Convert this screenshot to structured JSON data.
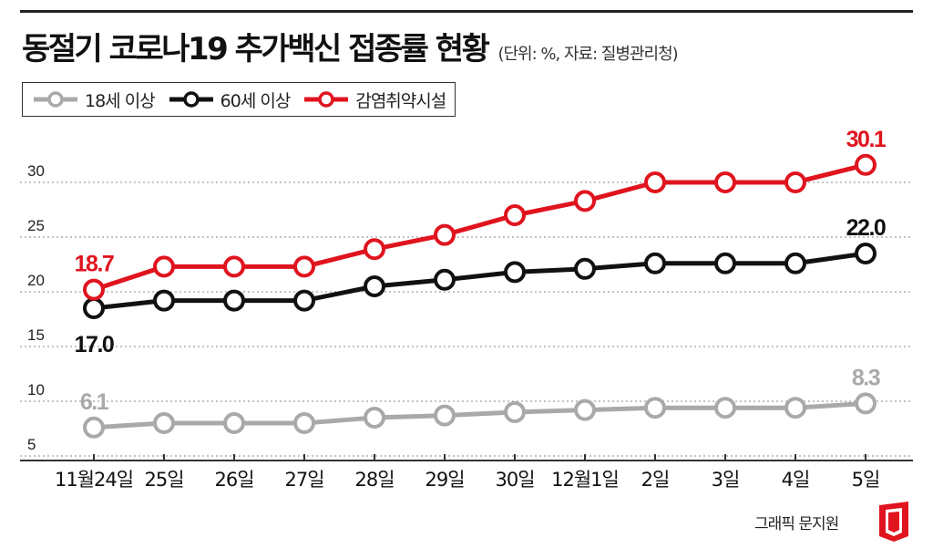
{
  "title": "동절기 코로나19 추가백신 접종률 현황",
  "subtitle": "(단위: %, 자료: 질병관리청)",
  "credit": "그래픽 문지원",
  "colors": {
    "series_18": "#a9a9a9",
    "series_60": "#111111",
    "series_vuln": "#e0141e"
  },
  "chart_data": {
    "type": "line",
    "title": "동절기 코로나19 추가백신 접종률 현황",
    "xlabel": "",
    "ylabel": "",
    "ylim": [
      3,
      33
    ],
    "yticks": [
      5,
      10,
      15,
      20,
      25,
      30
    ],
    "grid": true,
    "legend_position": "top-left",
    "categories": [
      "11월24일",
      "25일",
      "26일",
      "27일",
      "28일",
      "29일",
      "30일",
      "12월1일",
      "2일",
      "3일",
      "4일",
      "5일"
    ],
    "series": [
      {
        "name": "18세 이상",
        "color": "#a9a9a9",
        "values": [
          6.1,
          6.5,
          6.5,
          6.5,
          7.0,
          7.2,
          7.5,
          7.7,
          7.9,
          7.9,
          7.9,
          8.3
        ],
        "labels": [
          {
            "index": 0,
            "text": "6.1",
            "position": "above"
          },
          {
            "index": 11,
            "text": "8.3",
            "position": "above"
          }
        ]
      },
      {
        "name": "60세 이상",
        "color": "#111111",
        "values": [
          17.0,
          17.7,
          17.7,
          17.7,
          19.0,
          19.6,
          20.3,
          20.6,
          21.1,
          21.1,
          21.1,
          22.0
        ],
        "labels": [
          {
            "index": 0,
            "text": "17.0",
            "position": "below"
          },
          {
            "index": 11,
            "text": "22.0",
            "position": "above"
          }
        ]
      },
      {
        "name": "감염취약시설",
        "color": "#e0141e",
        "values": [
          18.7,
          20.8,
          20.8,
          20.8,
          22.4,
          23.7,
          25.5,
          26.8,
          28.5,
          28.5,
          28.5,
          30.1
        ],
        "labels": [
          {
            "index": 0,
            "text": "18.7",
            "position": "above"
          },
          {
            "index": 11,
            "text": "30.1",
            "position": "above"
          }
        ]
      }
    ]
  }
}
